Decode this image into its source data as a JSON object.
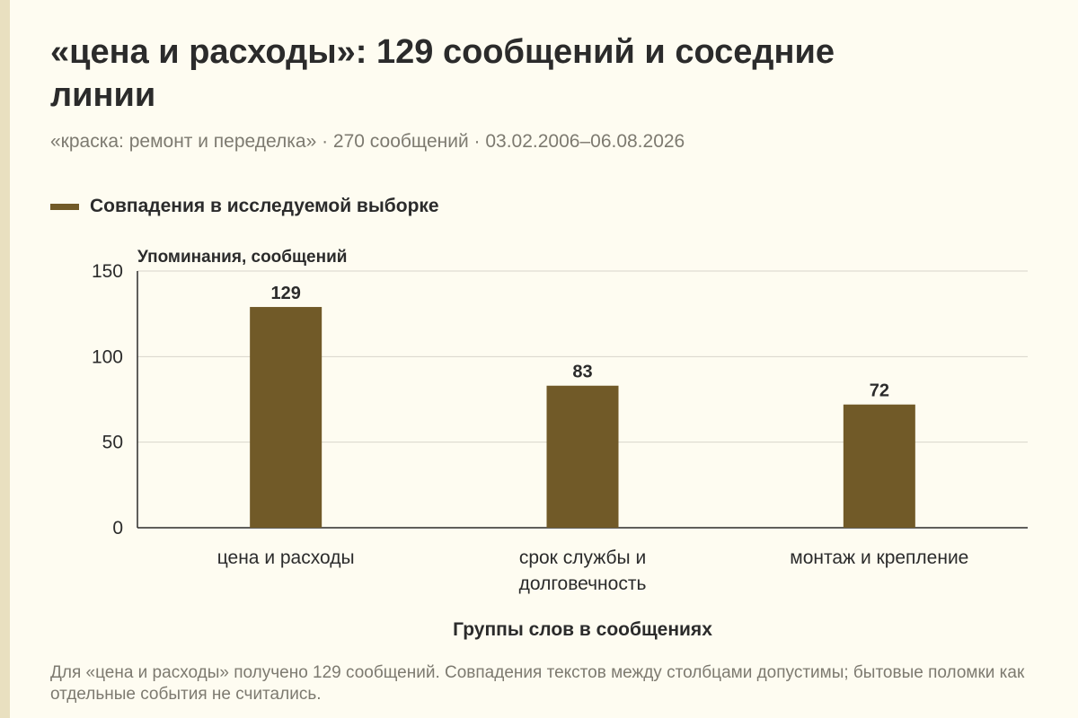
{
  "page": {
    "title": "«цена и расходы»: 129 сообщений и соседние линии",
    "subtitle": "«краска: ремонт и переделка» · 270 сообщений · 03.02.2006–06.08.2026",
    "note": "Для «цена и расходы» получено 129 сообщений. Совпадения текстов между столбцами допустимы; бытовые поломки как отдельные события не считались."
  },
  "colors": {
    "bar": "#715a28",
    "grid": "#d8d5cb",
    "axis": "#2b2b2b",
    "text": "#2b2b2b",
    "muted": "#7d7a70",
    "background": "#fefcf1"
  },
  "chart_data": {
    "type": "bar",
    "categories": [
      "цена и расходы",
      "срок службы и долговечность",
      "монтаж и крепление"
    ],
    "category_lines": [
      [
        "цена и расходы"
      ],
      [
        "срок службы и",
        "долговечность"
      ],
      [
        "монтаж и крепление"
      ]
    ],
    "series": [
      {
        "name": "Совпадения в исследуемой выборке",
        "values": [
          129,
          83,
          72
        ]
      }
    ],
    "data_labels": [
      "129",
      "83",
      "72"
    ],
    "ylabel": "Упоминания, сообщений",
    "xlabel": "Группы слов в сообщениях",
    "ylim": [
      0,
      150
    ],
    "yticks": [
      0,
      50,
      100,
      150
    ],
    "grid": true,
    "legend": "top-left"
  }
}
